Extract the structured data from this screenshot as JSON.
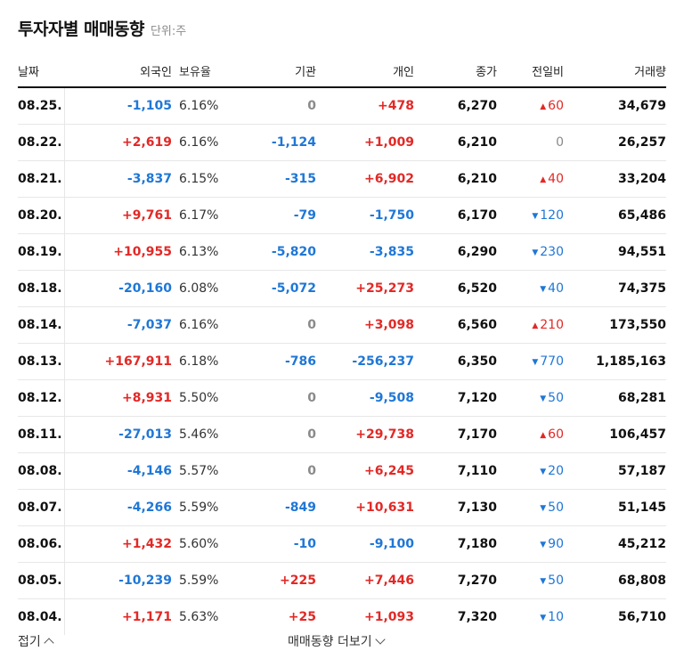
{
  "header": {
    "title": "투자자별 매매동향",
    "unit": "단위:주"
  },
  "columns": {
    "date": "날짜",
    "foreign": "외국인",
    "holding": "보유율",
    "institution": "기관",
    "individual": "개인",
    "close": "종가",
    "change": "전일비",
    "volume": "거래량"
  },
  "rows": [
    {
      "date": "08.25.",
      "foreign": "-1,105",
      "holding": "6.16%",
      "institution": "0",
      "individual": "+478",
      "close": "6,270",
      "change_dir": "up",
      "change": "60",
      "volume": "34,679"
    },
    {
      "date": "08.22.",
      "foreign": "+2,619",
      "holding": "6.16%",
      "institution": "-1,124",
      "individual": "+1,009",
      "close": "6,210",
      "change_dir": "none",
      "change": "0",
      "volume": "26,257"
    },
    {
      "date": "08.21.",
      "foreign": "-3,837",
      "holding": "6.15%",
      "institution": "-315",
      "individual": "+6,902",
      "close": "6,210",
      "change_dir": "up",
      "change": "40",
      "volume": "33,204"
    },
    {
      "date": "08.20.",
      "foreign": "+9,761",
      "holding": "6.17%",
      "institution": "-79",
      "individual": "-1,750",
      "close": "6,170",
      "change_dir": "down",
      "change": "120",
      "volume": "65,486"
    },
    {
      "date": "08.19.",
      "foreign": "+10,955",
      "holding": "6.13%",
      "institution": "-5,820",
      "individual": "-3,835",
      "close": "6,290",
      "change_dir": "down",
      "change": "230",
      "volume": "94,551"
    },
    {
      "date": "08.18.",
      "foreign": "-20,160",
      "holding": "6.08%",
      "institution": "-5,072",
      "individual": "+25,273",
      "close": "6,520",
      "change_dir": "down",
      "change": "40",
      "volume": "74,375"
    },
    {
      "date": "08.14.",
      "foreign": "-7,037",
      "holding": "6.16%",
      "institution": "0",
      "individual": "+3,098",
      "close": "6,560",
      "change_dir": "up",
      "change": "210",
      "volume": "173,550"
    },
    {
      "date": "08.13.",
      "foreign": "+167,911",
      "holding": "6.18%",
      "institution": "-786",
      "individual": "-256,237",
      "close": "6,350",
      "change_dir": "down",
      "change": "770",
      "volume": "1,185,163"
    },
    {
      "date": "08.12.",
      "foreign": "+8,931",
      "holding": "5.50%",
      "institution": "0",
      "individual": "-9,508",
      "close": "7,120",
      "change_dir": "down",
      "change": "50",
      "volume": "68,281"
    },
    {
      "date": "08.11.",
      "foreign": "-27,013",
      "holding": "5.46%",
      "institution": "0",
      "individual": "+29,738",
      "close": "7,170",
      "change_dir": "up",
      "change": "60",
      "volume": "106,457"
    },
    {
      "date": "08.08.",
      "foreign": "-4,146",
      "holding": "5.57%",
      "institution": "0",
      "individual": "+6,245",
      "close": "7,110",
      "change_dir": "down",
      "change": "20",
      "volume": "57,187"
    },
    {
      "date": "08.07.",
      "foreign": "-4,266",
      "holding": "5.59%",
      "institution": "-849",
      "individual": "+10,631",
      "close": "7,130",
      "change_dir": "down",
      "change": "50",
      "volume": "51,145"
    },
    {
      "date": "08.06.",
      "foreign": "+1,432",
      "holding": "5.60%",
      "institution": "-10",
      "individual": "-9,100",
      "close": "7,180",
      "change_dir": "down",
      "change": "90",
      "volume": "45,212"
    },
    {
      "date": "08.05.",
      "foreign": "-10,239",
      "holding": "5.59%",
      "institution": "+225",
      "individual": "+7,446",
      "close": "7,270",
      "change_dir": "down",
      "change": "50",
      "volume": "68,808"
    },
    {
      "date": "08.04.",
      "foreign": "+1,171",
      "holding": "5.63%",
      "institution": "+25",
      "individual": "+1,093",
      "close": "7,320",
      "change_dir": "down",
      "change": "10",
      "volume": "56,710"
    }
  ],
  "footer": {
    "fold": "접기",
    "more": "매매동향 더보기"
  },
  "colors": {
    "up": "#e22926",
    "down": "#1f77d6",
    "neutral": "#8a8a8a"
  },
  "icons": {
    "up_arrow": "triangle-up-icon",
    "down_arrow": "triangle-down-icon",
    "fold": "chevron-up-icon",
    "more": "chevron-down-icon"
  }
}
